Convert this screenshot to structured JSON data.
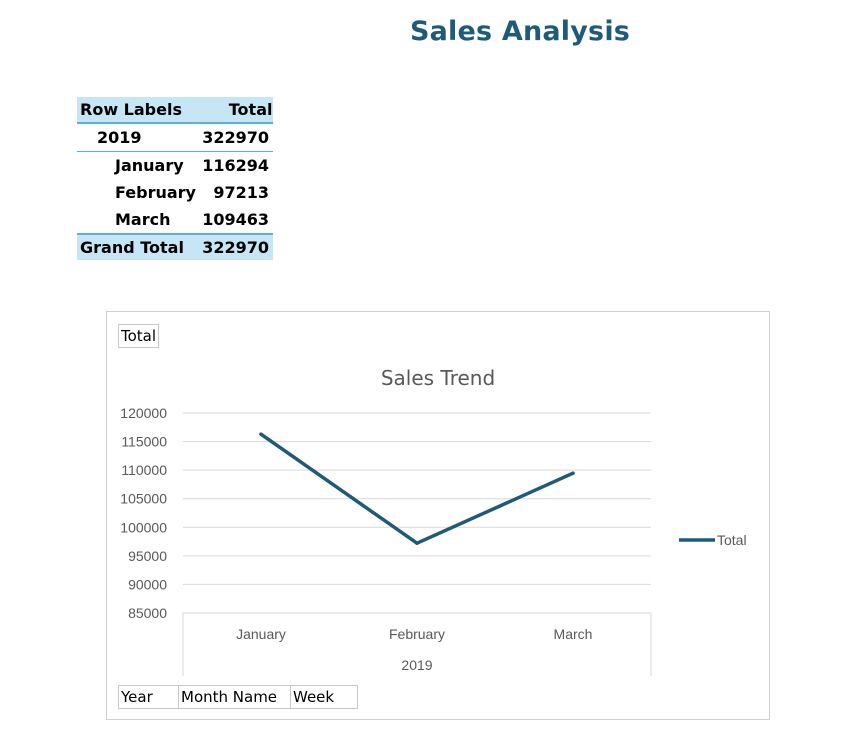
{
  "page": {
    "title": "Sales Analysis"
  },
  "pivot": {
    "headers": {
      "row_labels": "Row Labels",
      "total": "Total"
    },
    "year": {
      "label": "2019",
      "value": "322970"
    },
    "months": [
      {
        "label": "January",
        "value": "116294"
      },
      {
        "label": "February",
        "value": "97213"
      },
      {
        "label": "March",
        "value": "109463"
      }
    ],
    "grand_total": {
      "label": "Grand Total",
      "value": "322970"
    }
  },
  "chart_panel": {
    "value_field_button": "Total",
    "axis_field_buttons": [
      "Year",
      "Month Name",
      "Week"
    ]
  },
  "chart_data": {
    "type": "line",
    "title": "Sales Trend",
    "categories": [
      "January",
      "February",
      "March"
    ],
    "category_group": "2019",
    "series": [
      {
        "name": "Total",
        "values": [
          116294,
          97213,
          109463
        ],
        "color": "#1f5a7a"
      }
    ],
    "ylim": [
      85000,
      120000
    ],
    "yticks": [
      120000,
      115000,
      110000,
      105000,
      100000,
      95000,
      90000,
      85000
    ],
    "grid": true,
    "legend_position": "right",
    "xlabel": "",
    "ylabel": ""
  }
}
